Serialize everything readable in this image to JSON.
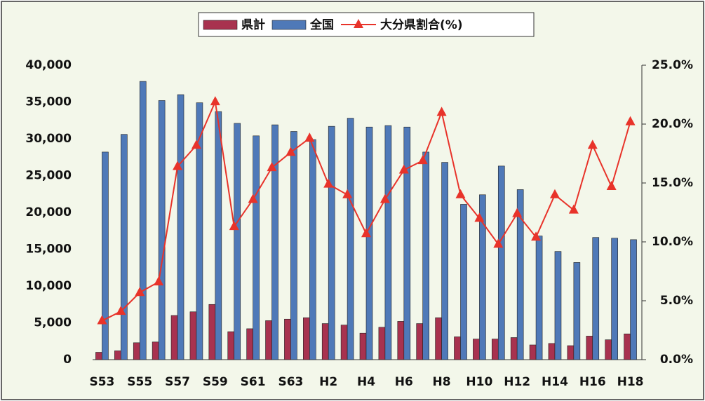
{
  "chart_data": {
    "type": "bar_line",
    "categories": [
      "S53",
      null,
      "S55",
      null,
      "S57",
      null,
      "S59",
      null,
      "S61",
      null,
      "S63",
      null,
      "H2",
      null,
      "H4",
      null,
      "H6",
      null,
      "H8",
      null,
      "H10",
      null,
      "H12",
      null,
      "H14",
      null,
      "H16",
      null,
      "H18"
    ],
    "series": [
      {
        "name": "県計",
        "type": "bar",
        "color": "#a8324f",
        "values": [
          1000,
          1200,
          2300,
          2400,
          6000,
          6500,
          7500,
          3800,
          4200,
          5300,
          5500,
          5700,
          4900,
          4700,
          3600,
          4400,
          5200,
          4900,
          5700,
          3100,
          2800,
          2800,
          3000,
          2000,
          2200,
          1900,
          3200,
          2700,
          3500
        ]
      },
      {
        "name": "全国",
        "type": "bar",
        "color": "#4f79b8",
        "values": [
          28200,
          30600,
          37800,
          35200,
          36000,
          34900,
          33700,
          32100,
          30400,
          31900,
          31000,
          29900,
          31700,
          32800,
          31600,
          31800,
          31600,
          28200,
          26800,
          21100,
          22400,
          26300,
          23100,
          16800,
          14700,
          13200,
          16600,
          16500,
          16300
        ]
      },
      {
        "name": "大分県割合(%)",
        "type": "line",
        "axis": "y2",
        "color": "#e8332a",
        "values": [
          3.3,
          4.1,
          5.7,
          6.6,
          16.4,
          18.2,
          21.9,
          11.3,
          13.6,
          16.3,
          17.6,
          18.8,
          14.9,
          14.0,
          10.7,
          13.6,
          16.1,
          16.9,
          21.0,
          14.0,
          12.0,
          9.8,
          12.4,
          10.4,
          14.0,
          12.7,
          18.2,
          14.7,
          20.2
        ]
      }
    ],
    "ylim": [
      0,
      40000
    ],
    "yticks": [
      0,
      {
        "value": 5000,
        "label": "5,000"
      },
      {
        "value": 10000,
        "label": "10,000"
      },
      {
        "value": 15000,
        "label": "15,000"
      },
      {
        "value": 20000,
        "label": "20,000"
      },
      {
        "value": 25000,
        "label": "25,000"
      },
      {
        "value": 30000,
        "label": "30,000"
      },
      {
        "value": 35000,
        "label": "35,000"
      },
      {
        "value": 40000,
        "label": "40,000"
      }
    ],
    "y2lim": [
      0,
      25
    ],
    "y2ticks": [
      {
        "value": 0,
        "label": "0.0%"
      },
      {
        "value": 5,
        "label": "5.0%"
      },
      {
        "value": 10,
        "label": "10.0%"
      },
      {
        "value": 15,
        "label": "15.0%"
      },
      {
        "value": 20,
        "label": "20.0%"
      },
      {
        "value": 25,
        "label": "25.0%"
      }
    ],
    "legend": "top"
  }
}
